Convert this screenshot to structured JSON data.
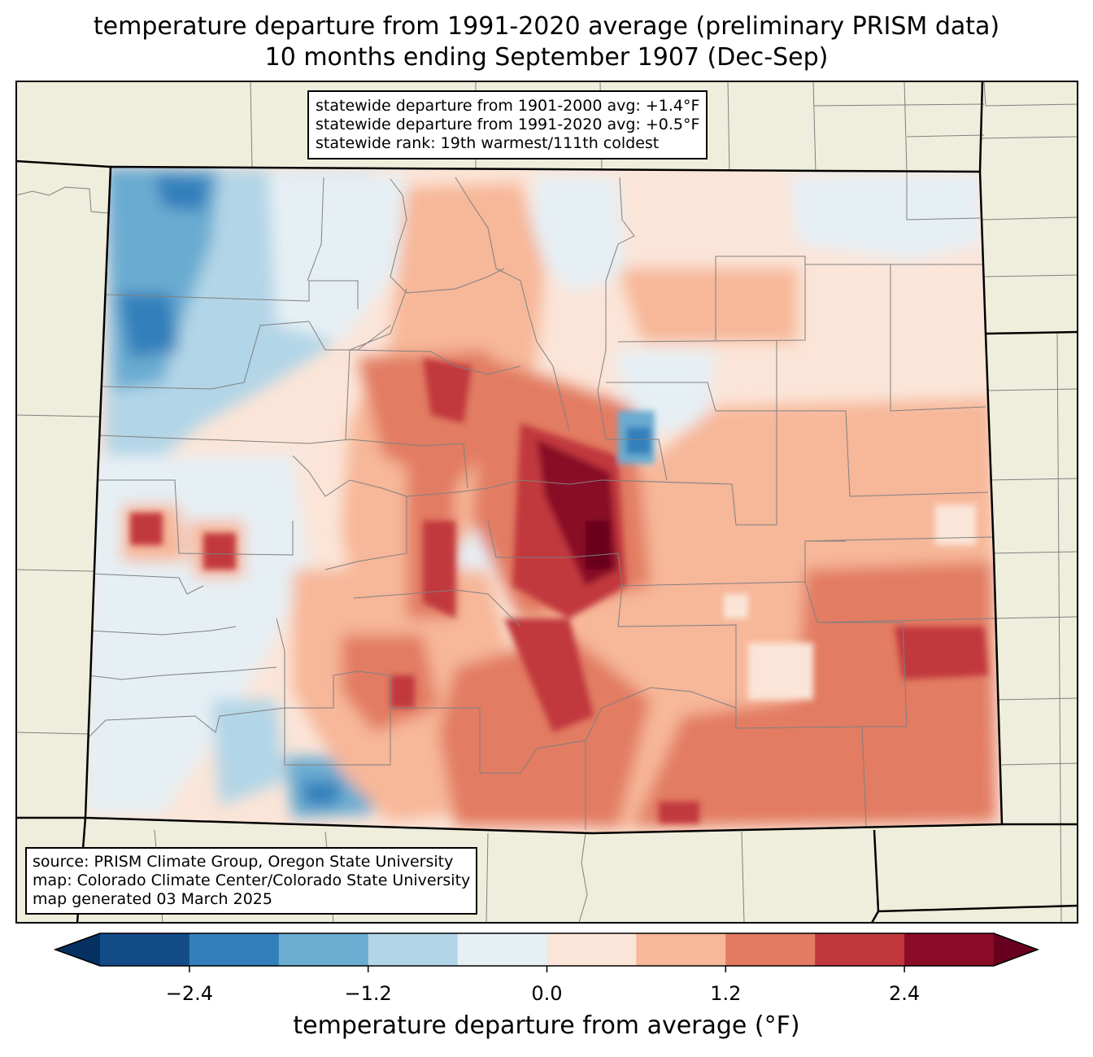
{
  "title": {
    "line1": "temperature departure from 1991-2020 average (preliminary PRISM data)",
    "line2": "10 months ending September 1907 (Dec-Sep)"
  },
  "stats": {
    "line1": "statewide departure from 1901-2000 avg: +1.4°F",
    "line2": "statewide departure from 1991-2020 avg: +0.5°F",
    "line3": "statewide rank: 19th warmest/111th coldest"
  },
  "source": {
    "line1": "source: PRISM Climate Group, Oregon State University",
    "line2": "map: Colorado Climate Center/Colorado State University",
    "line3": "map generated 03 March 2025"
  },
  "colorbar": {
    "label": "temperature departure from average (°F)",
    "ticks": [
      "−2.4",
      "−1.2",
      "0.0",
      "1.2",
      "2.4"
    ],
    "tick_values": [
      -2.4,
      -1.2,
      0.0,
      1.2,
      2.4
    ],
    "range": [
      -3.0,
      3.0
    ],
    "step": 0.6,
    "colors": [
      "#053061",
      "#134b87",
      "#327fbb",
      "#6bacd1",
      "#b2d5e7",
      "#e6eff4",
      "#fbe5d8",
      "#f7b799",
      "#e27b62",
      "#c1383c",
      "#8a0b25",
      "#67001f"
    ]
  },
  "map_colors": {
    "land": "#efeedc",
    "state_border": "#000000",
    "county_border": "#808080"
  }
}
